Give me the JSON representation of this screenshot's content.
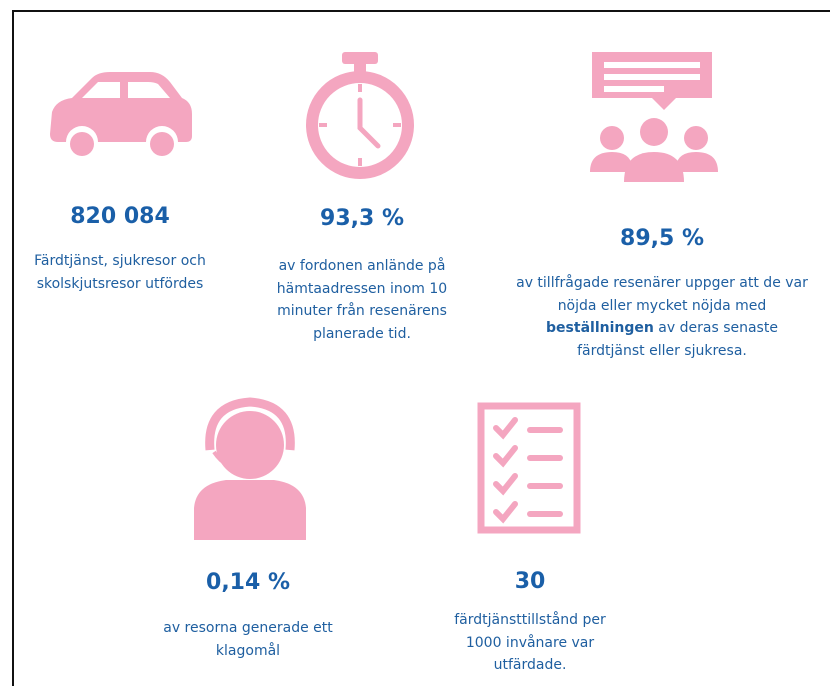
{
  "stats": [
    {
      "value": "820 084",
      "lines": [
        [
          "Färdtjänst, sjukresor och"
        ],
        [
          "skolskjutsresor utfördes"
        ]
      ]
    },
    {
      "value": "93,3 %",
      "lines": [
        [
          "av fordonen anlände på"
        ],
        [
          "hämtaadressen inom 10"
        ],
        [
          "minuter från resenärens"
        ],
        [
          "planerade tid."
        ]
      ]
    },
    {
      "value": "89,5 %",
      "lines": [
        [
          "av tillfrågade resenärer uppger att de var"
        ],
        [
          "nöjda eller mycket nöjda med"
        ],
        [
          {
            "text": "beställningen",
            "bold": true
          },
          " av deras senaste"
        ],
        [
          "färdtjänst eller sjukresa."
        ]
      ]
    },
    {
      "value": "0,14 %",
      "lines": [
        [
          "av resorna generade ett"
        ],
        [
          "klagomål"
        ]
      ]
    },
    {
      "value": "30",
      "lines": [
        [
          "färdtjänsttillstånd per"
        ],
        [
          "1000 invånare var"
        ],
        [
          "utfärdade."
        ]
      ]
    }
  ]
}
